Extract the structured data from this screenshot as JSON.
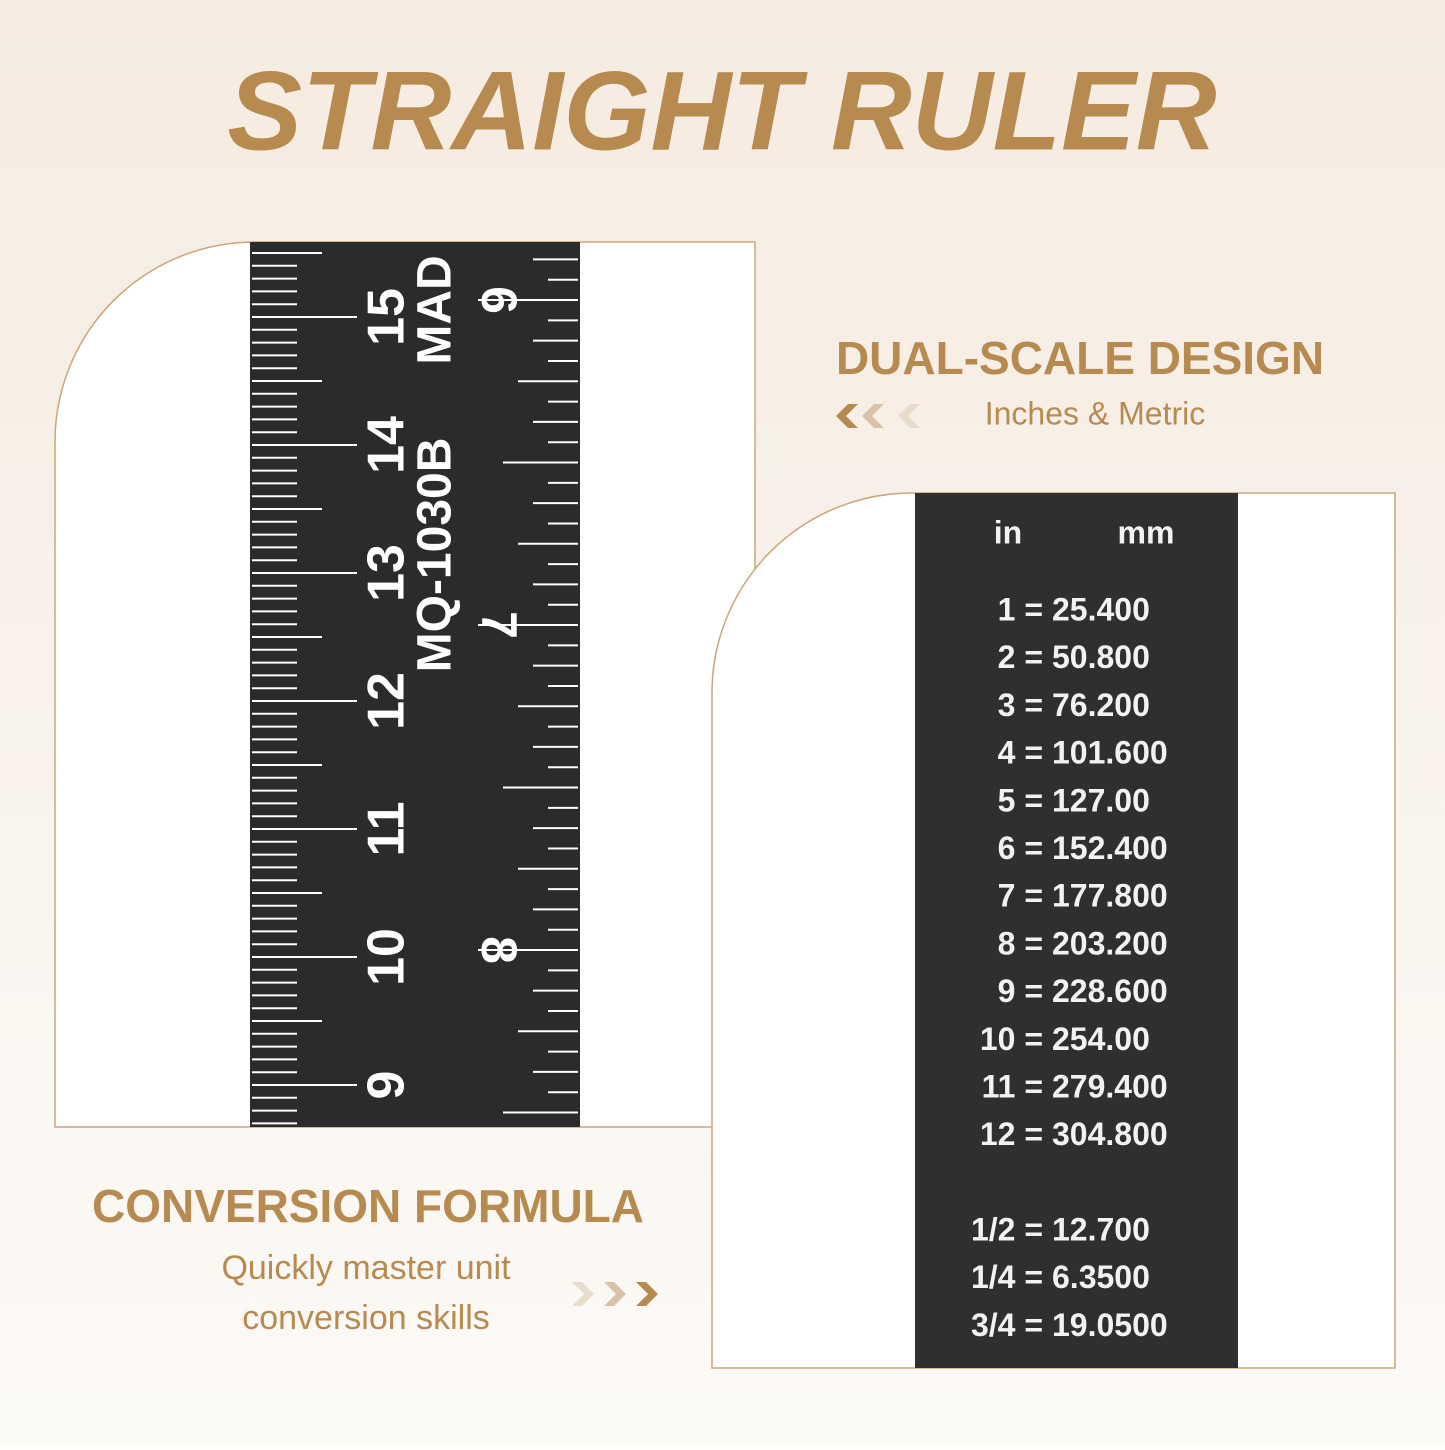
{
  "header": {
    "title": "STRAIGHT RULER"
  },
  "dual_scale": {
    "heading": "DUAL-SCALE DESIGN",
    "caption": "Inches & Metric"
  },
  "conversion": {
    "heading": "CONVERSION FORMULA",
    "caption_lines": [
      "Quickly master unit",
      "conversion skills"
    ]
  },
  "ruler": {
    "cm_labels": [
      "15",
      "14",
      "13",
      "12",
      "11",
      "10",
      "9"
    ],
    "inch_labels": [
      "6",
      "7",
      "8"
    ],
    "brand": "MAD",
    "model": "MQ-1030B"
  },
  "table": {
    "header": [
      "in",
      "mm"
    ],
    "rows": [
      [
        "1 =",
        "25.400"
      ],
      [
        "2 =",
        "50.800"
      ],
      [
        "3 =",
        "76.200"
      ],
      [
        "4 =",
        "101.600"
      ],
      [
        "5 =",
        "127.00"
      ],
      [
        "6 =",
        "152.400"
      ],
      [
        "7 =",
        "177.800"
      ],
      [
        "8 =",
        "203.200"
      ],
      [
        "9 =",
        "228.600"
      ],
      [
        "10 =",
        "254.00"
      ],
      [
        "11 =",
        "279.400"
      ],
      [
        "12 =",
        "304.800"
      ]
    ],
    "fraction_rows": [
      [
        "1/2 =",
        "12.700"
      ],
      [
        "1/4 =",
        "6.3500"
      ],
      [
        "3/4 =",
        "19.0500"
      ]
    ]
  }
}
